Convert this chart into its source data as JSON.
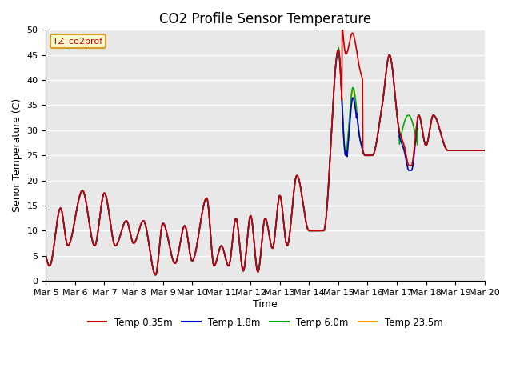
{
  "title": "CO2 Profile Sensor Temperature",
  "ylabel": "Senor Temperature (C)",
  "xlabel": "Time",
  "ylim": [
    0,
    50
  ],
  "legend_label": "TZ_co2prof",
  "series_labels": [
    "Temp 0.35m",
    "Temp 1.8m",
    "Temp 6.0m",
    "Temp 23.5m"
  ],
  "series_colors": [
    "#cc0000",
    "#0000cc",
    "#00aa00",
    "#ffa500"
  ],
  "background_color": "#e8e8e8",
  "grid_color": "#ffffff",
  "title_fontsize": 12,
  "label_fontsize": 9,
  "tick_fontsize": 8
}
